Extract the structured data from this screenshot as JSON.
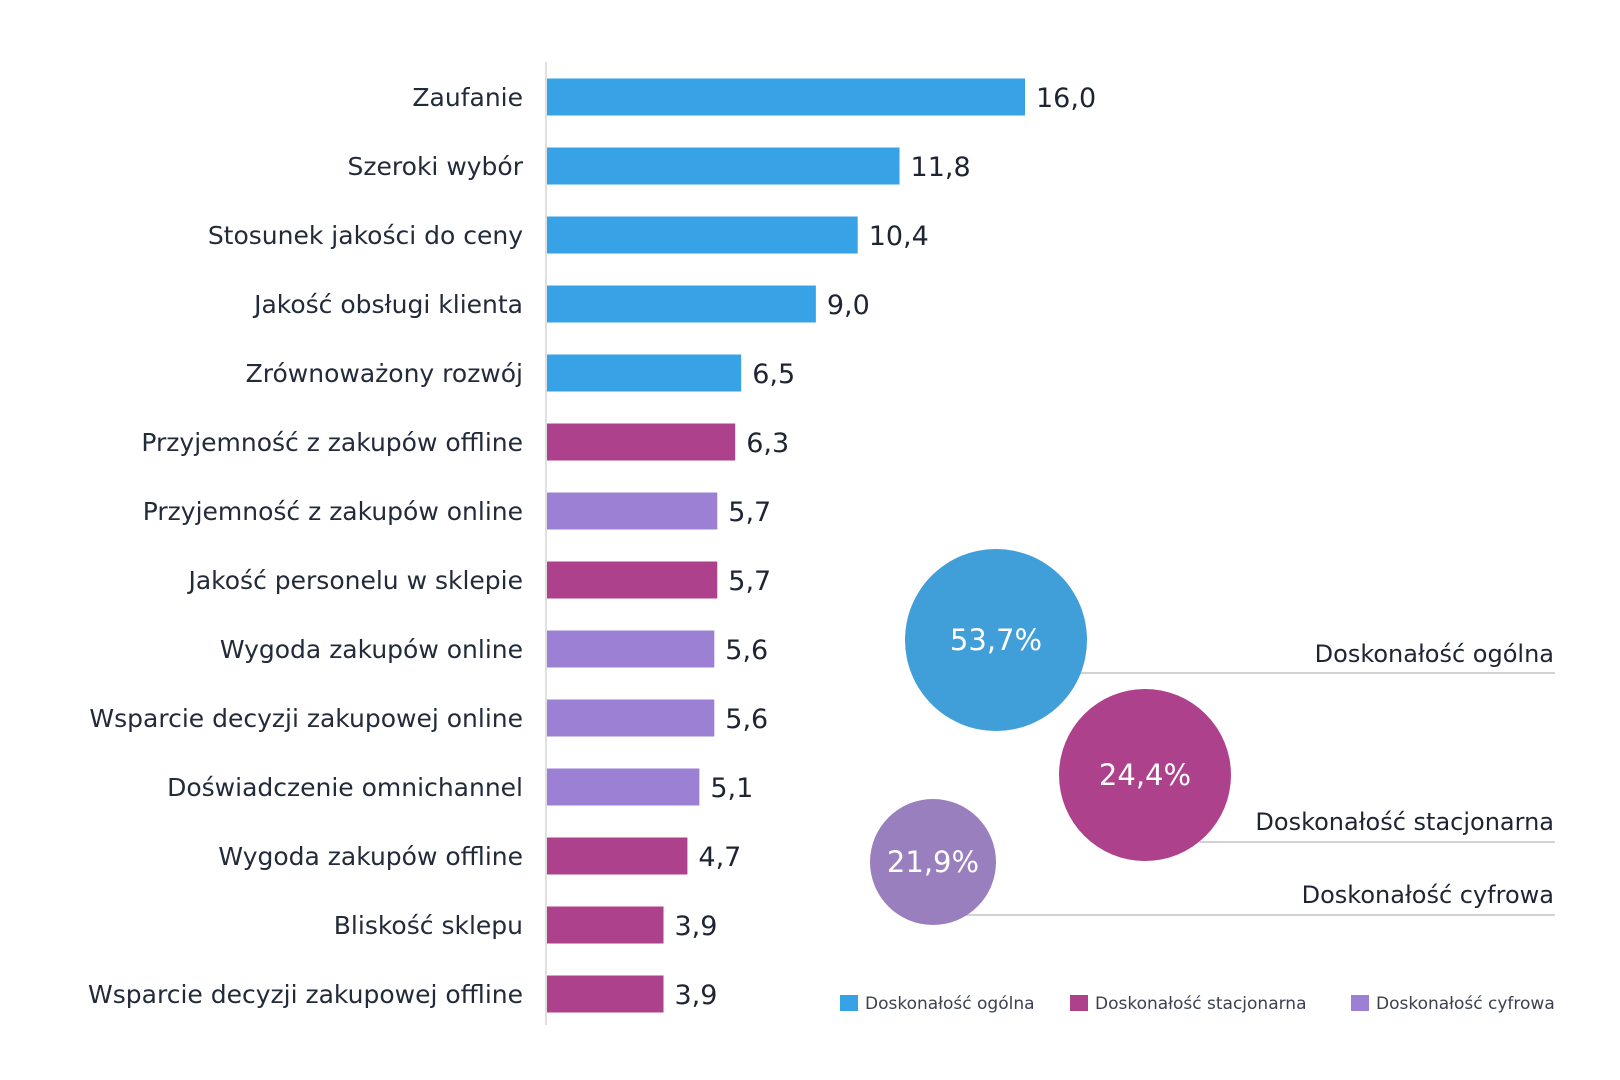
{
  "chart_data": {
    "type": "bar",
    "orientation": "horizontal",
    "title": "",
    "xlabel": "",
    "ylabel": "",
    "xlim": [
      0,
      16
    ],
    "grid": false,
    "categories": [
      "Zaufanie",
      "Szeroki wybór",
      "Stosunek jakości do ceny",
      "Jakość obsługi klienta",
      "Zrównoważony rozwój",
      "Przyjemność z zakupów offline",
      "Przyjemność z zakupów online",
      "Jakość personelu w sklepie",
      "Wygoda zakupów online",
      "Wsparcie decyzji zakupowej online",
      "Doświadczenie omnichannel",
      "Wygoda zakupów offline",
      "Bliskość sklepu",
      "Wsparcie decyzji zakupowej offline"
    ],
    "values": [
      16.0,
      11.8,
      10.4,
      9.0,
      6.5,
      6.3,
      5.7,
      5.7,
      5.6,
      5.6,
      5.1,
      4.7,
      3.9,
      3.9
    ],
    "value_labels": [
      "16,0",
      "11,8",
      "10,4",
      "9,0",
      "6,5",
      "6,3",
      "5,7",
      "5,7",
      "5,6",
      "5,6",
      "5,1",
      "4,7",
      "3,9",
      "3,9"
    ],
    "groups": [
      "Doskonałość ogólna",
      "Doskonałość ogólna",
      "Doskonałość ogólna",
      "Doskonałość ogólna",
      "Doskonałość ogólna",
      "Doskonałość stacjonarna",
      "Doskonałość cyfrowa",
      "Doskonałość stacjonarna",
      "Doskonałość cyfrowa",
      "Doskonałość cyfrowa",
      "Doskonałość cyfrowa",
      "Doskonałość stacjonarna",
      "Doskonałość stacjonarna",
      "Doskonałość stacjonarna"
    ],
    "series_colors": {
      "Doskonałość ogólna": "#38a2e6",
      "Doskonałość stacjonarna": "#ad418c",
      "Doskonałość cyfrowa": "#9b80d3"
    },
    "bubbles": [
      {
        "name": "Doskonałość ogólna",
        "value": 53.7,
        "label": "53,7%",
        "color": "#409fd9"
      },
      {
        "name": "Doskonałość stacjonarna",
        "value": 24.4,
        "label": "24,4%",
        "color": "#ad418c"
      },
      {
        "name": "Doskonałość cyfrowa",
        "value": 21.9,
        "label": "21,9%",
        "color": "#9a7fbf"
      }
    ],
    "legend": {
      "position": "bottom-right",
      "entries": [
        {
          "label": "Doskonałość ogólna",
          "color": "#38a2e6"
        },
        {
          "label": "Doskonałość stacjonarna",
          "color": "#ad418c"
        },
        {
          "label": "Doskonałość cyfrowa",
          "color": "#9b80d3"
        }
      ]
    }
  }
}
